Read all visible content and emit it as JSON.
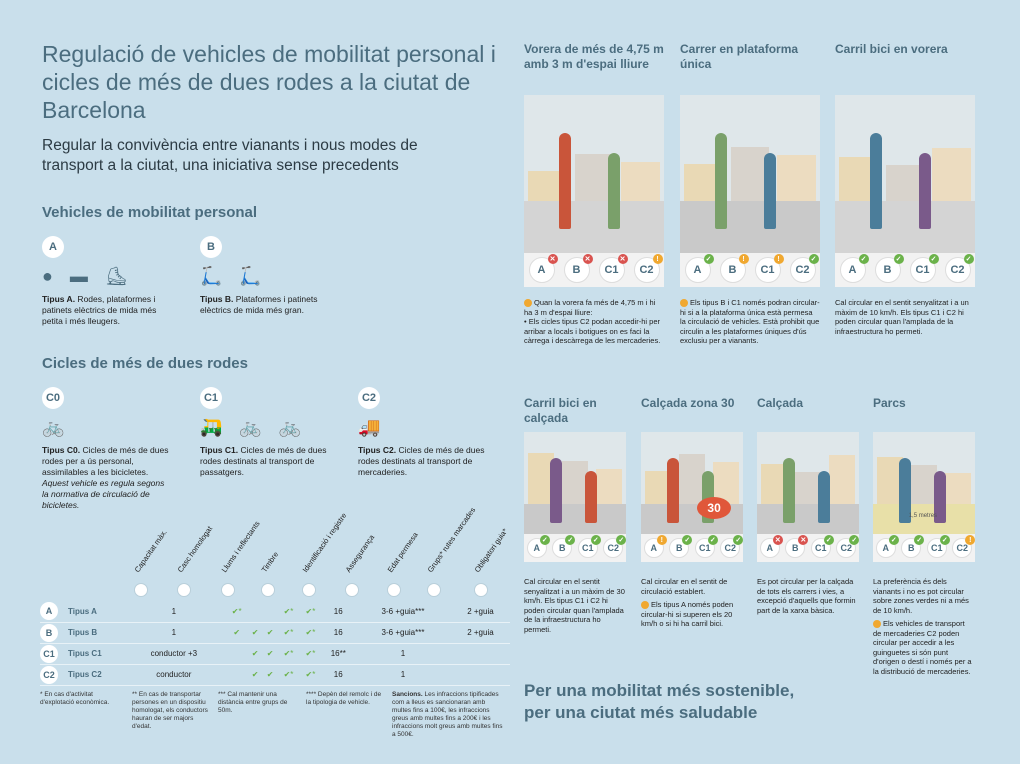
{
  "title": "Regulació de vehicles de mobilitat personal i cicles de més de dues rodes a la ciutat de Barcelona",
  "subtitle": "Regular la convivència entre vianants i nous modes de transport a la ciutat, una iniciativa sense precedents",
  "colors": {
    "background": "#c9dfeb",
    "heading": "#4b6d7f",
    "ok": "#6bb24a",
    "no": "#d9534f",
    "warn": "#f0a830"
  },
  "vmp": {
    "heading": "Vehicles de mobilitat personal",
    "items": [
      {
        "code": "A",
        "icons": "● ▬ ⛸",
        "bold": "Tipus A.",
        "text": " Rodes, plataformes i patinets elèctrics de mida més petita i més lleugers."
      },
      {
        "code": "B",
        "icons": "🛴 🛴",
        "bold": "Tipus B.",
        "text": " Plataformes i patinets elèctrics de mida més gran."
      }
    ]
  },
  "cicles": {
    "heading": "Cicles de més de dues rodes",
    "items": [
      {
        "code": "C0",
        "icons": "🚲",
        "bold": "Tipus C0.",
        "text": " Cicles de més de dues rodes per a ús personal, assimilables a les bicicletes.",
        "italic": "Aquest vehicle es regula segons la normativa de circulació de bicicletes."
      },
      {
        "code": "C1",
        "icons": "🛺 🚲 🚲",
        "bold": "Tipus C1.",
        "text": " Cicles de més de dues rodes destinats al transport de passatgers.",
        "italic": ""
      },
      {
        "code": "C2",
        "icons": "🚚",
        "bold": "Tipus C2.",
        "text": " Cicles de més de dues rodes destinats al transport de mercaderies.",
        "italic": ""
      }
    ]
  },
  "table": {
    "columns": [
      "Capacitat màx.",
      "Casc homologat",
      "Llums i reflectants",
      "Timbre",
      "Identificació i registre",
      "Assegurança",
      "Edat permesa",
      "Grups* rutes marcades",
      "Obligatori guia*"
    ],
    "column_icons": [
      "person-icon",
      "helmet-icon",
      "light-icon",
      "bell-icon",
      "id-icon",
      "shield-icon",
      "age-icon",
      "group-icon",
      "guide-icon"
    ],
    "rows": [
      {
        "code": "A",
        "label": "Tipus A",
        "cells": [
          "1",
          "✔*",
          "",
          "",
          "✔*",
          "✔*",
          "16",
          "3-6 +guia***",
          "2 +guia"
        ]
      },
      {
        "code": "B",
        "label": "Tipus B",
        "cells": [
          "1",
          "✔",
          "✔",
          "✔",
          "✔*",
          "✔*",
          "16",
          "3-6 +guia***",
          "2 +guia"
        ]
      },
      {
        "code": "C1",
        "label": "Tipus C1",
        "cells": [
          "conductor +3",
          "",
          "✔",
          "✔",
          "✔*",
          "✔*",
          "16**",
          "1",
          ""
        ]
      },
      {
        "code": "C2",
        "label": "Tipus C2",
        "cells": [
          "conductor",
          "",
          "✔",
          "✔",
          "✔*",
          "✔*",
          "16",
          "1",
          ""
        ]
      }
    ],
    "footnotes": [
      "* En cas d'activitat d'explotació econòmica.",
      "** En cas de transportar persones en un dispositiu homologat, els conductors hauran de ser majors d'edat.",
      "*** Cal mantenir una distància entre grups de 50m.",
      "**** Depèn del remolc i de la tipologia de vehicle."
    ],
    "sancions_bold": "Sancions.",
    "sancions": " Les infraccions tipificades com a lleus es sancionaran amb multes fins a 100€, les infraccions greus amb multes fins a 200€ i les infraccions molt greus amb multes fins a 500€."
  },
  "scenes": [
    {
      "title": "Vorera de més de 4,75 m amb 3 m d'espai lliure",
      "status": [
        "no",
        "no",
        "no",
        "warn"
      ],
      "warn": true,
      "note": "Quan la vorera fa més de 4,75 m i hi ha 3 m d'espai lliure:",
      "note2": "• Els cicles tipus C2 podan accedir-hi per arribar a locals i botigues on es faci la càrrega i descàrrega de les mercaderies."
    },
    {
      "title": "Carrer en plataforma única",
      "status": [
        "ok",
        "warn",
        "warn",
        "ok"
      ],
      "warn": true,
      "note": "Els tipus B i C1 només podran circular-hi si a la plataforma única està permesa la circulació de vehicles. Està prohibit que circulin a les plataformes úniques d'ús exclusiu per a vianants.",
      "note2": ""
    },
    {
      "title": "Carril bici en vorera",
      "status": [
        "ok",
        "ok",
        "ok",
        "ok"
      ],
      "warn": false,
      "note": "Cal circular en el sentit senyalitzat i a un màxim de 10 km/h. Els tipus C1 i C2 hi poden circular quan l'amplada de la infraestructura ho permeti.",
      "note2": ""
    },
    {
      "title": "Carril bici en calçada",
      "status": [
        "ok",
        "ok",
        "ok",
        "ok"
      ],
      "warn": false,
      "note": "Cal circular en el sentit senyalitzat i a un màxim de 30 km/h. Els tipus C1 i C2 hi poden circular quan l'amplada de la infraestructura ho permeti.",
      "note2": ""
    },
    {
      "title": "Calçada zona 30",
      "status": [
        "warn",
        "ok",
        "ok",
        "ok"
      ],
      "warn": true,
      "pre": "Cal circular en el sentit de circulació establert.",
      "note": "Els tipus A només poden circular-hi si superen els 20 km/h o si hi ha carril bici.",
      "note2": ""
    },
    {
      "title": "Calçada",
      "status": [
        "no",
        "no",
        "ok",
        "ok"
      ],
      "warn": false,
      "note": "Es pot circular per la calçada de tots els carrers i vies, a excepció d'aquells que formin part de la xarxa bàsica.",
      "note2": ""
    },
    {
      "title": "Parcs",
      "status": [
        "ok",
        "ok",
        "ok",
        "warn"
      ],
      "warn": true,
      "pre": "La preferència és dels vianants i no es pot circular sobre zones verdes ni a més de 10 km/h.",
      "note": "Els vehicles de transport de mercaderies C2 poden circular per accedir a les guinguetes si són punt d'origen o destí i només per a la distribució de mercaderies.",
      "note2": ""
    }
  ],
  "badge_labels": [
    "A",
    "B",
    "C1",
    "C2"
  ],
  "zone30_sign": "30",
  "parc_label": "1,5 metres",
  "tagline": "Per una mobilitat més sostenible, per una ciutat més saludable"
}
